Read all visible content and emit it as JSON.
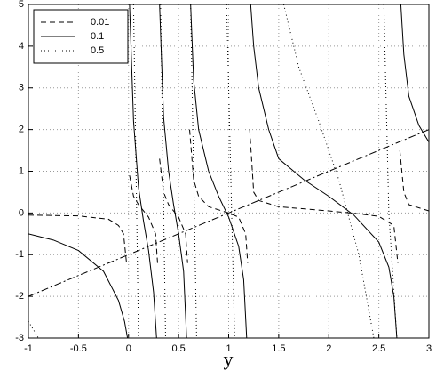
{
  "chart_data": {
    "type": "line",
    "xlabel": "y",
    "xlim": [
      -1,
      3
    ],
    "ylim": [
      -3,
      5
    ],
    "xticks": [
      -1,
      -0.5,
      0,
      0.5,
      1,
      1.5,
      2,
      2.5,
      3
    ],
    "yticks": [
      -3,
      -2,
      -1,
      0,
      1,
      2,
      3,
      4,
      5
    ],
    "grid": true,
    "legend": "upper left",
    "series": [
      {
        "name": "0.01",
        "color": "#000000",
        "dash": "dashed",
        "x": [
          -1,
          -0.5,
          -0.2,
          -0.1,
          -0.05,
          -0.02,
          0,
          0.01,
          0.05,
          0.1,
          0.2,
          0.27,
          0.29,
          0.3,
          0.31,
          0.35,
          0.4,
          0.5,
          0.57,
          0.59,
          0.6,
          0.61,
          0.65,
          0.7,
          0.8,
          1.0,
          1.1,
          1.17,
          1.19,
          1.2,
          1.21,
          1.25,
          1.3,
          1.5,
          2,
          2.3,
          2.5,
          2.65,
          2.69,
          2.7,
          2.71,
          2.75,
          2.8,
          3
        ],
        "values": [
          -0.05,
          -0.07,
          -0.15,
          -0.3,
          -0.5,
          -1.2,
          null,
          0.9,
          0.4,
          0.2,
          -0.1,
          -0.5,
          -1.2,
          null,
          1.3,
          0.5,
          0.2,
          -0.1,
          -0.5,
          -1.2,
          null,
          2,
          0.8,
          0.4,
          0.15,
          0,
          -0.1,
          -0.5,
          -1.2,
          null,
          2,
          0.5,
          0.3,
          0.15,
          0.05,
          -0.02,
          -0.08,
          -0.3,
          -1.2,
          null,
          1.5,
          0.5,
          0.2,
          0.05
        ]
      },
      {
        "name": "0.1",
        "color": "#000000",
        "dash": "solid",
        "x": [
          -1,
          -0.75,
          -0.5,
          -0.25,
          -0.1,
          -0.04,
          -0.01,
          0,
          0.01,
          0.05,
          0.1,
          0.15,
          0.2,
          0.25,
          0.28,
          0.3,
          0.31,
          0.35,
          0.4,
          0.45,
          0.5,
          0.55,
          0.58,
          0.6,
          0.62,
          0.65,
          0.7,
          0.8,
          0.9,
          1.0,
          1.1,
          1.15,
          1.18,
          1.2,
          1.22,
          1.25,
          1.3,
          1.4,
          1.5,
          1.75,
          2,
          2.25,
          2.5,
          2.6,
          2.65,
          2.68,
          2.7,
          2.72,
          2.75,
          2.8,
          2.9,
          3
        ],
        "values": [
          -0.5,
          -0.65,
          -0.9,
          -1.4,
          -2.1,
          -2.6,
          -3,
          null,
          5,
          2.2,
          0.6,
          -0.2,
          -0.9,
          -1.9,
          -3,
          null,
          5,
          2.3,
          1,
          0.2,
          -0.5,
          -1.4,
          -3,
          null,
          5,
          3.2,
          2,
          1,
          0.4,
          -0.1,
          -0.8,
          -1.6,
          -3,
          null,
          5,
          4,
          3,
          2,
          1.3,
          0.8,
          0.4,
          -0.05,
          -0.7,
          -1.3,
          -2,
          -3,
          null,
          5,
          3.8,
          2.8,
          2.1,
          1.7
        ]
      },
      {
        "name": "0.5",
        "color": "#000000",
        "dash": "dotted",
        "x": [
          -1,
          -0.9,
          -0.5,
          0.05,
          0.1,
          0.2,
          0.32,
          0.37,
          0.5,
          0.62,
          0.68,
          0.8,
          0.98,
          1.06,
          1.3,
          1.55,
          1.7,
          1.9,
          2.1,
          2.3,
          2.45,
          2.5,
          2.55,
          2.6,
          2.68
        ],
        "values": [
          -2.6,
          -3,
          null,
          5,
          -3,
          null,
          5,
          -3,
          null,
          5,
          -3,
          null,
          5,
          -3,
          null,
          5,
          3.5,
          2.2,
          0.8,
          -1,
          -3,
          null,
          5,
          0,
          -3
        ]
      },
      {
        "color": "#000000",
        "dash": "dashdot",
        "x": [
          -1,
          3
        ],
        "values": [
          -2,
          2
        ]
      }
    ]
  }
}
